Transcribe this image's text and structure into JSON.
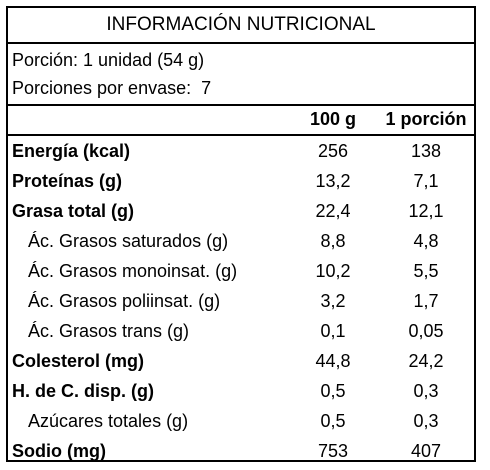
{
  "title": "INFORMACIÓN NUTRICIONAL",
  "serving": {
    "portion": "Porción: 1 unidad (54 g)",
    "per_package": "Porciones por envase:  7"
  },
  "columns": {
    "per_100g": "100 g",
    "per_portion": "1 porción"
  },
  "rows": [
    {
      "name": "Energía (kcal)",
      "v100": "256",
      "vpor": "138"
    },
    {
      "name": "Proteínas (g)",
      "v100": "13,2",
      "vpor": "7,1"
    },
    {
      "name": "Grasa total (g)",
      "v100": "22,4",
      "vpor": "12,1"
    },
    {
      "name": "Ác. Grasos saturados (g)",
      "v100": "8,8",
      "vpor": "4,8"
    },
    {
      "name": "Ác. Grasos monoinsat. (g)",
      "v100": "10,2",
      "vpor": "5,5"
    },
    {
      "name": "Ác. Grasos poliinsat. (g)",
      "v100": "3,2",
      "vpor": "1,7"
    },
    {
      "name": "Ác. Grasos trans (g)",
      "v100": "0,1",
      "vpor": "0,05"
    },
    {
      "name": "Colesterol (mg)",
      "v100": "44,8",
      "vpor": "24,2"
    },
    {
      "name": "H. de C. disp. (g)",
      "v100": "0,5",
      "vpor": "0,3"
    },
    {
      "name": "Azúcares totales (g)",
      "v100": "0,5",
      "vpor": "0,3"
    },
    {
      "name": "Sodio (mg)",
      "v100": "753",
      "vpor": "407"
    }
  ]
}
